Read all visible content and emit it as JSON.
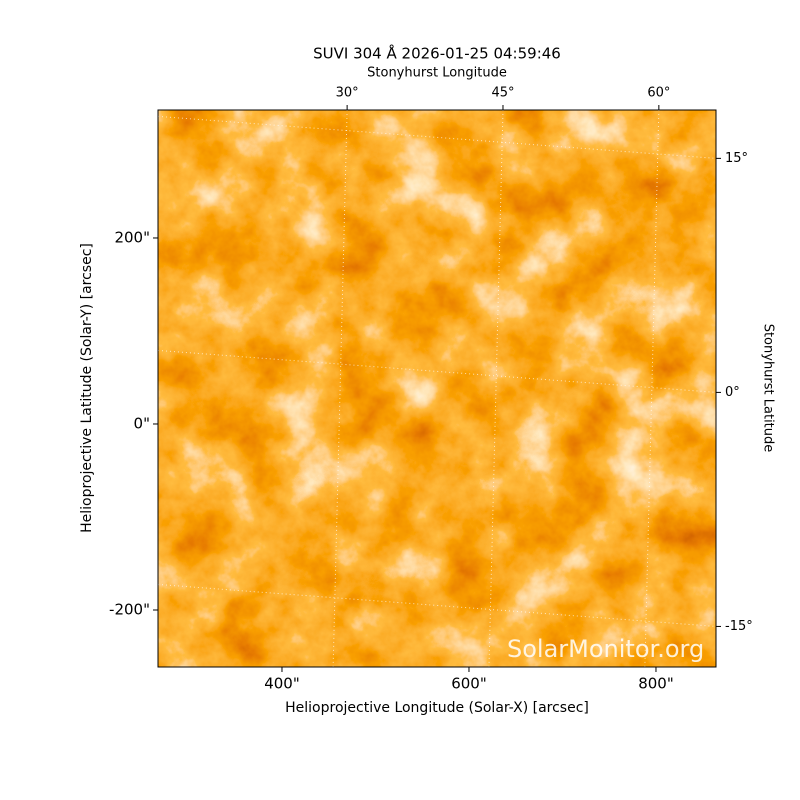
{
  "chart_data": {
    "type": "image",
    "title": "SUVI 304 Å 2026-01-25 04:59:46",
    "x_label": "Helioprojective Longitude (Solar-X) [arcsec]",
    "y_label": "Helioprojective Latitude (Solar-Y) [arcsec]",
    "x2_label": "Stonyhurst Longitude",
    "y2_label": "Stonyhurst Latitude",
    "watermark": "SolarMonitor.org",
    "xlim": [
      267.4,
      864.2
    ],
    "ylim": [
      -261.3,
      337.6
    ],
    "xticks": [
      {
        "value": 400,
        "label": "400\""
      },
      {
        "value": 600,
        "label": "600\""
      },
      {
        "value": 800,
        "label": "800\""
      }
    ],
    "yticks": [
      {
        "value": -200,
        "label": "-200\""
      },
      {
        "value": 0,
        "label": "0\""
      },
      {
        "value": 200,
        "label": "200\""
      }
    ],
    "x2lim": [
      11.8,
      65.5
    ],
    "x2ticks": [
      {
        "value": 30,
        "label": "30°"
      },
      {
        "value": 45,
        "label": "45°"
      },
      {
        "value": 60,
        "label": "60°"
      }
    ],
    "y2lim": [
      -17.6,
      18.1
    ],
    "y2ticks": [
      {
        "value": -15,
        "label": "-15°"
      },
      {
        "value": 0,
        "label": "0°"
      },
      {
        "value": 15,
        "label": "15°"
      }
    ]
  }
}
